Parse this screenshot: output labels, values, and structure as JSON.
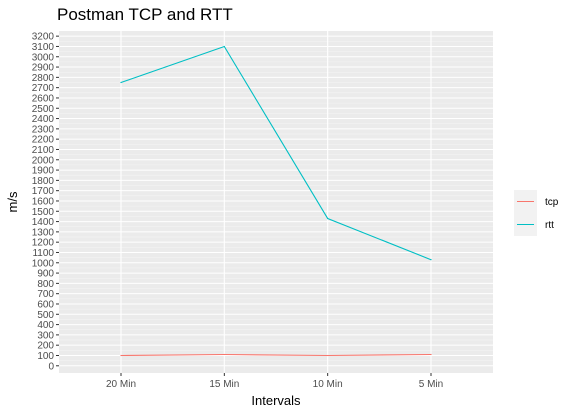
{
  "chart_data": {
    "type": "line",
    "title": "Postman TCP and RTT",
    "xlabel": "Intervals",
    "ylabel": "m/s",
    "categories": [
      "20 Min",
      "15 Min",
      "10 Min",
      "5 Min"
    ],
    "series": [
      {
        "name": "tcp",
        "color": "#F8766D",
        "values": [
          100,
          110,
          100,
          110
        ]
      },
      {
        "name": "rtt",
        "color": "#00BFC4",
        "values": [
          2750,
          3100,
          1430,
          1030
        ]
      }
    ],
    "ylim": [
      -70,
      3250
    ],
    "yticks": [
      0,
      100,
      200,
      300,
      400,
      500,
      600,
      700,
      800,
      900,
      1000,
      1100,
      1200,
      1300,
      1400,
      1500,
      1600,
      1700,
      1800,
      1900,
      2000,
      2100,
      2200,
      2300,
      2400,
      2500,
      2600,
      2700,
      2800,
      2900,
      3000,
      3100,
      3200
    ],
    "grid": true,
    "legend_position": "right",
    "background": "#EBEBEB",
    "gridline_color": "#FFFFFF"
  }
}
